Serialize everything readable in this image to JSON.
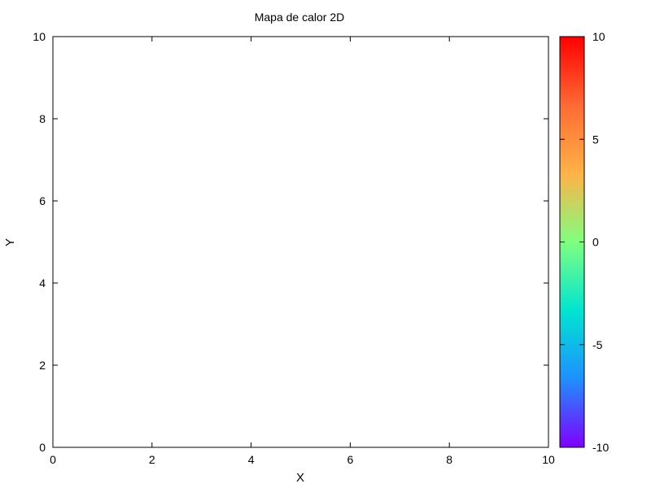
{
  "chart_data": {
    "type": "heatmap",
    "title": "Mapa de calor 2D",
    "xlabel": "X",
    "ylabel": "Y",
    "xlim": [
      0,
      10
    ],
    "ylim": [
      0,
      10
    ],
    "x_ticks": [
      0,
      2,
      4,
      6,
      8,
      10
    ],
    "y_ticks": [
      0,
      2,
      4,
      6,
      8,
      10
    ],
    "grid": false,
    "values": [],
    "colorbar": {
      "range": [
        -10,
        10
      ],
      "ticks": [
        -10,
        -5,
        0,
        5,
        10
      ],
      "colors": [
        "#7f00ff",
        "#1e90ff",
        "#00e5d0",
        "#7fff7f",
        "#ffb347",
        "#ff6a33",
        "#ff0000"
      ]
    }
  }
}
